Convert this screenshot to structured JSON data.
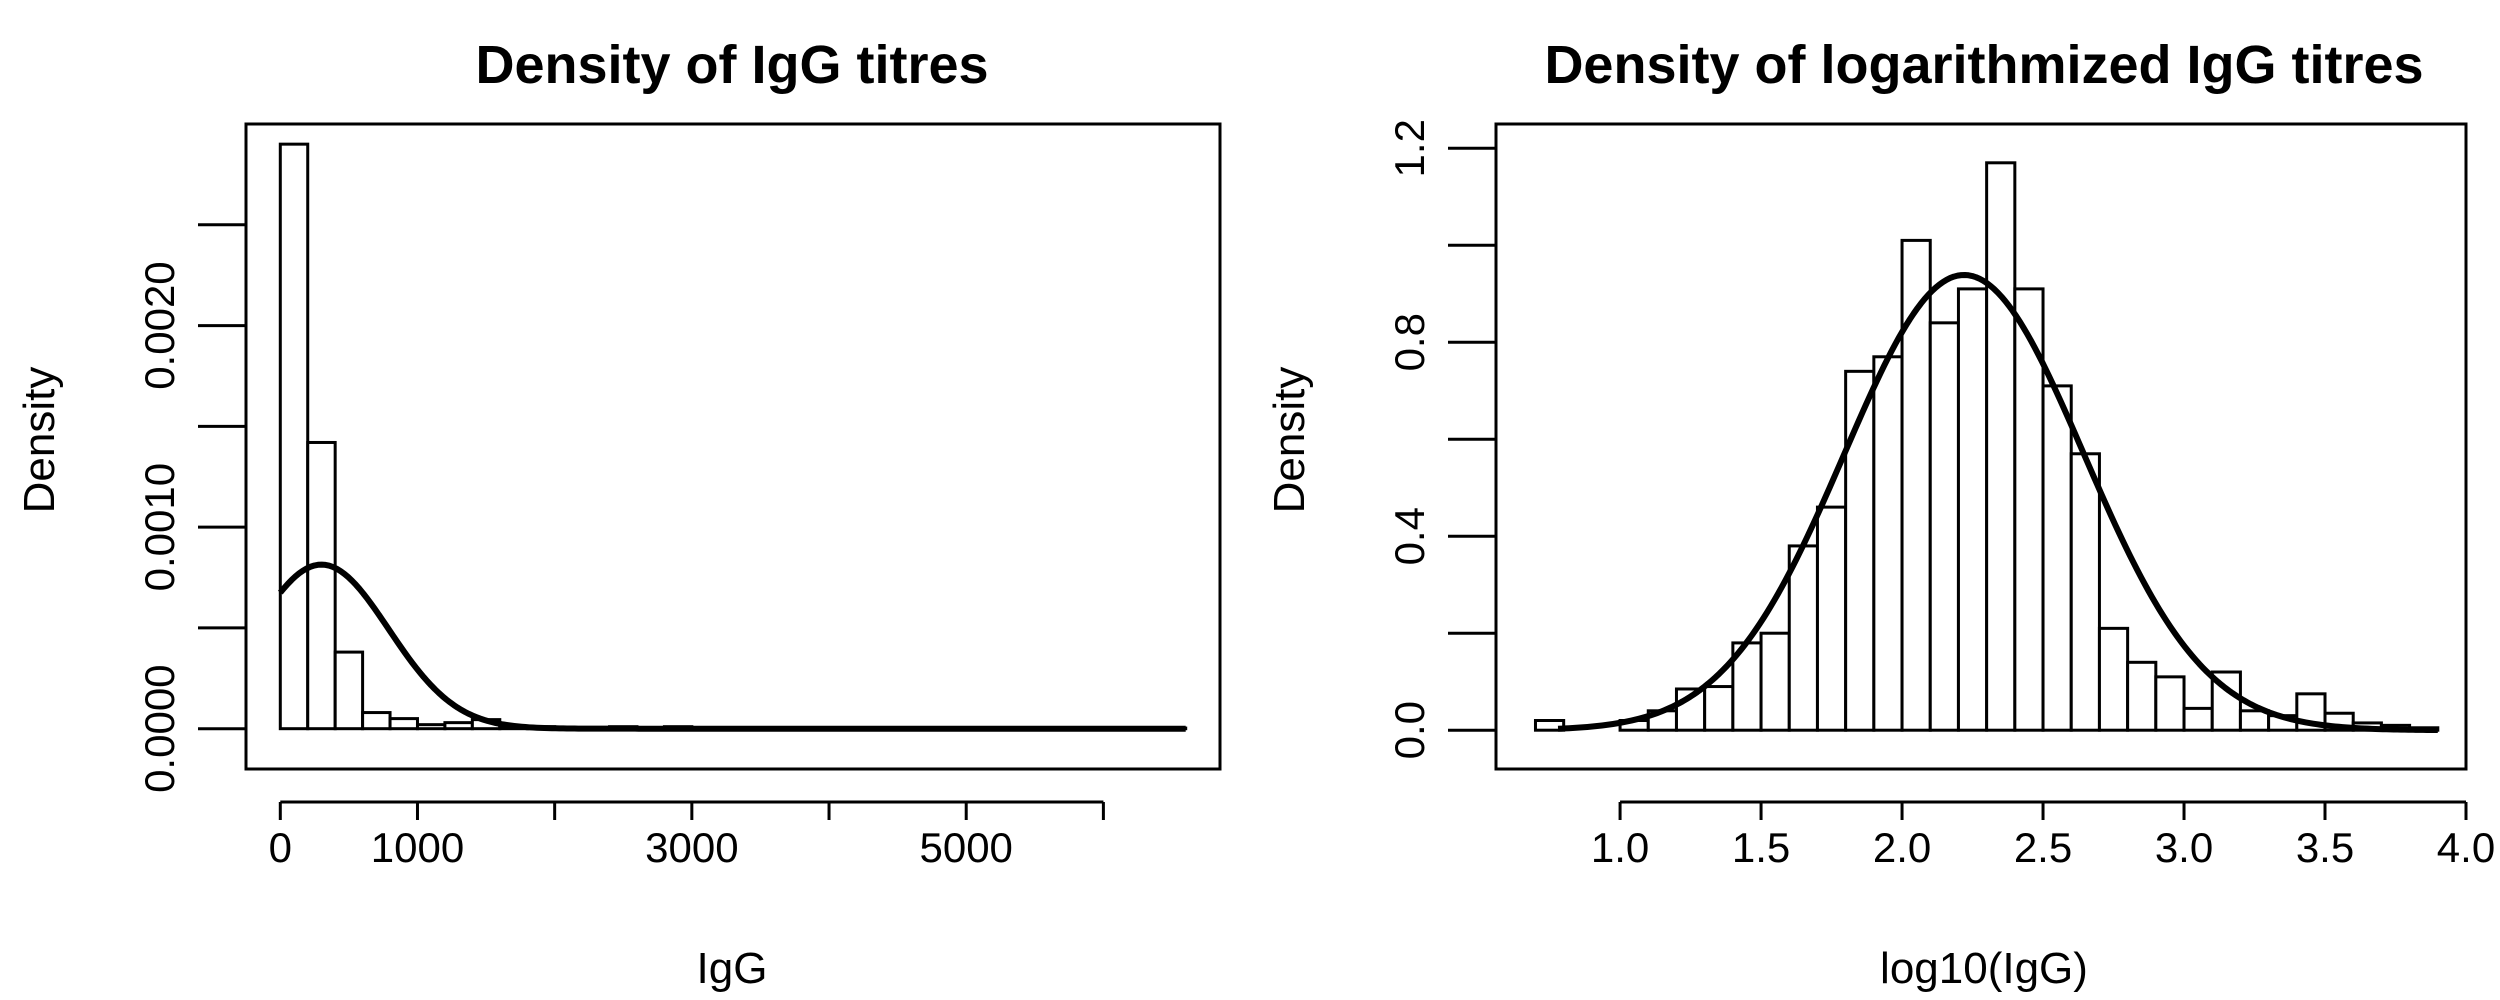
{
  "chart_data": [
    {
      "type": "histogram",
      "title": "Density of IgG titres",
      "xlabel": "IgG",
      "ylabel": "Density",
      "xlim": [
        -250,
        6850
      ],
      "ylim": [
        -0.0002,
        0.003
      ],
      "x_ticks": [
        0,
        1000,
        2000,
        3000,
        4000,
        5000,
        6000
      ],
      "x_tick_labels": [
        "0",
        "1000",
        "",
        "3000",
        "",
        "5000",
        ""
      ],
      "y_ticks": [
        0,
        0.0005,
        0.001,
        0.0015,
        0.002,
        0.0025
      ],
      "y_tick_labels": [
        "0.0000",
        "",
        "0.0010",
        "",
        "0.0020",
        ""
      ],
      "bin_width": 200,
      "bins": [
        {
          "x0": 0,
          "x1": 200,
          "density": 0.0029
        },
        {
          "x0": 200,
          "x1": 400,
          "density": 0.00142
        },
        {
          "x0": 400,
          "x1": 600,
          "density": 0.00038
        },
        {
          "x0": 600,
          "x1": 800,
          "density": 8e-05
        },
        {
          "x0": 800,
          "x1": 1000,
          "density": 5e-05
        },
        {
          "x0": 1000,
          "x1": 1200,
          "density": 2e-05
        },
        {
          "x0": 1200,
          "x1": 1400,
          "density": 3e-05
        },
        {
          "x0": 1400,
          "x1": 1600,
          "density": 4.5e-05
        },
        {
          "x0": 1600,
          "x1": 1800,
          "density": 1e-05
        },
        {
          "x0": 1800,
          "x1": 2000,
          "density": 1e-05
        },
        {
          "x0": 2000,
          "x1": 2200,
          "density": 5e-06
        },
        {
          "x0": 2200,
          "x1": 2400,
          "density": 5e-06
        },
        {
          "x0": 2400,
          "x1": 2600,
          "density": 1e-05
        },
        {
          "x0": 2600,
          "x1": 2800,
          "density": 5e-06
        },
        {
          "x0": 2800,
          "x1": 3000,
          "density": 1e-05
        },
        {
          "x0": 3000,
          "x1": 3200,
          "density": 5e-06
        },
        {
          "x0": 3200,
          "x1": 3400,
          "density": 5e-06
        },
        {
          "x0": 3400,
          "x1": 3600,
          "density": 5e-06
        },
        {
          "x0": 3600,
          "x1": 3800,
          "density": 3e-06
        },
        {
          "x0": 3800,
          "x1": 4000,
          "density": 3e-06
        },
        {
          "x0": 4000,
          "x1": 4200,
          "density": 3e-06
        },
        {
          "x0": 4200,
          "x1": 4400,
          "density": 3e-06
        },
        {
          "x0": 4400,
          "x1": 4600,
          "density": 3e-06
        },
        {
          "x0": 4600,
          "x1": 4800,
          "density": 3e-06
        },
        {
          "x0": 4800,
          "x1": 5000,
          "density": 3e-06
        },
        {
          "x0": 5000,
          "x1": 5200,
          "density": 3e-06
        },
        {
          "x0": 5200,
          "x1": 5400,
          "density": 3e-06
        },
        {
          "x0": 5400,
          "x1": 5600,
          "density": 3e-06
        },
        {
          "x0": 5600,
          "x1": 5800,
          "density": 3e-06
        },
        {
          "x0": 5800,
          "x1": 6000,
          "density": 3e-06
        },
        {
          "x0": 6000,
          "x1": 6200,
          "density": 3e-06
        },
        {
          "x0": 6200,
          "x1": 6400,
          "density": 3e-06
        },
        {
          "x0": 6400,
          "x1": 6600,
          "density": 3e-06
        }
      ],
      "normal_curve": {
        "mean": 300,
        "sd": 490,
        "x_from": 0,
        "x_to": 6600
      }
    },
    {
      "type": "histogram",
      "title": "Density of logarithmized IgG titres",
      "xlabel": "log10(IgG)",
      "ylabel": "Density",
      "xlim": [
        0.56,
        4.0
      ],
      "ylim": [
        -0.08,
        1.25
      ],
      "x_ticks": [
        1.0,
        1.5,
        2.0,
        2.5,
        3.0,
        3.5,
        4.0
      ],
      "x_tick_labels": [
        "1.0",
        "1.5",
        "2.0",
        "2.5",
        "3.0",
        "3.5",
        "4.0"
      ],
      "y_ticks": [
        0.0,
        0.2,
        0.4,
        0.6,
        0.8,
        1.0,
        1.2
      ],
      "y_tick_labels": [
        "0.0",
        "",
        "0.4",
        "",
        "0.8",
        "",
        "1.2"
      ],
      "bin_width": 0.1,
      "bins": [
        {
          "x0": 0.7,
          "x1": 0.8,
          "density": 0.02
        },
        {
          "x0": 0.8,
          "x1": 0.9,
          "density": 0.0
        },
        {
          "x0": 0.9,
          "x1": 1.0,
          "density": 0.0
        },
        {
          "x0": 1.0,
          "x1": 1.1,
          "density": 0.02
        },
        {
          "x0": 1.1,
          "x1": 1.2,
          "density": 0.04
        },
        {
          "x0": 1.2,
          "x1": 1.3,
          "density": 0.085
        },
        {
          "x0": 1.3,
          "x1": 1.4,
          "density": 0.09
        },
        {
          "x0": 1.4,
          "x1": 1.5,
          "density": 0.18
        },
        {
          "x0": 1.5,
          "x1": 1.6,
          "density": 0.2
        },
        {
          "x0": 1.6,
          "x1": 1.7,
          "density": 0.38
        },
        {
          "x0": 1.7,
          "x1": 1.8,
          "density": 0.46
        },
        {
          "x0": 1.8,
          "x1": 1.9,
          "density": 0.74
        },
        {
          "x0": 1.9,
          "x1": 2.0,
          "density": 0.77
        },
        {
          "x0": 2.0,
          "x1": 2.1,
          "density": 1.01
        },
        {
          "x0": 2.1,
          "x1": 2.2,
          "density": 0.84
        },
        {
          "x0": 2.2,
          "x1": 2.3,
          "density": 0.91
        },
        {
          "x0": 2.3,
          "x1": 2.4,
          "density": 1.17
        },
        {
          "x0": 2.4,
          "x1": 2.5,
          "density": 0.91
        },
        {
          "x0": 2.5,
          "x1": 2.6,
          "density": 0.71
        },
        {
          "x0": 2.6,
          "x1": 2.7,
          "density": 0.57
        },
        {
          "x0": 2.7,
          "x1": 2.8,
          "density": 0.21
        },
        {
          "x0": 2.8,
          "x1": 2.9,
          "density": 0.14
        },
        {
          "x0": 2.9,
          "x1": 3.0,
          "density": 0.11
        },
        {
          "x0": 3.0,
          "x1": 3.1,
          "density": 0.045
        },
        {
          "x0": 3.1,
          "x1": 3.2,
          "density": 0.12
        },
        {
          "x0": 3.2,
          "x1": 3.3,
          "density": 0.04
        },
        {
          "x0": 3.3,
          "x1": 3.4,
          "density": 0.03
        },
        {
          "x0": 3.4,
          "x1": 3.5,
          "density": 0.075
        },
        {
          "x0": 3.5,
          "x1": 3.6,
          "density": 0.035
        },
        {
          "x0": 3.6,
          "x1": 3.7,
          "density": 0.015
        },
        {
          "x0": 3.7,
          "x1": 3.8,
          "density": 0.01
        },
        {
          "x0": 3.8,
          "x1": 3.9,
          "density": 0.005
        }
      ],
      "normal_curve": {
        "mean": 2.22,
        "sd": 0.425,
        "x_from": 0.78,
        "x_to": 3.9
      }
    }
  ]
}
